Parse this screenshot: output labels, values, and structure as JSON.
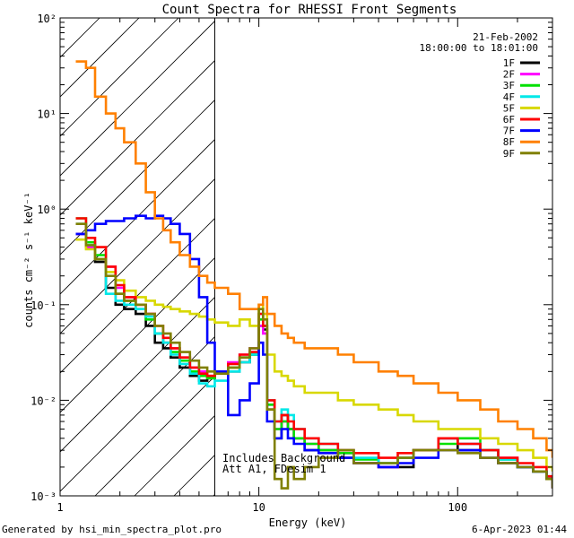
{
  "chart_data": {
    "type": "line",
    "title": "Count Spectra for RHESSI Front Segments",
    "xlabel": "Energy (keV)",
    "ylabel": "counts cm⁻² s⁻¹ keV⁻¹",
    "xscale": "log",
    "yscale": "log",
    "xlim": [
      1,
      300
    ],
    "ylim": [
      0.001,
      100
    ],
    "x_ticks": [
      {
        "value": 1,
        "label": "1"
      },
      {
        "value": 10,
        "label": "10"
      },
      {
        "value": 100,
        "label": "100"
      }
    ],
    "y_ticks": [
      {
        "value": 0.001,
        "label": "10⁻³"
      },
      {
        "value": 0.01,
        "label": "10⁻²"
      },
      {
        "value": 0.1,
        "label": "10⁻¹"
      },
      {
        "value": 1,
        "label": "10⁰"
      },
      {
        "value": 10,
        "label": "10¹"
      },
      {
        "value": 100,
        "label": "10²"
      }
    ],
    "date_label": "21-Feb-2002",
    "time_label": "18:00:00 to 18:01:00",
    "hatched_region_xmax": 6,
    "annotation_lines": [
      "Includes Background",
      "Att A1, FDesim 1"
    ],
    "legend_position": "top-right",
    "grid": false,
    "series": [
      {
        "name": "1F",
        "color": "#000000",
        "x": [
          1.2,
          1.35,
          1.5,
          1.7,
          1.9,
          2.1,
          2.4,
          2.7,
          3.0,
          3.3,
          3.6,
          4.0,
          4.5,
          5.0,
          5.5,
          6.0,
          7,
          8,
          9,
          10,
          10.5,
          11,
          12,
          13,
          14,
          15,
          17,
          20,
          25,
          30,
          40,
          50,
          60,
          80,
          100,
          130,
          160,
          200,
          240,
          280,
          300
        ],
        "y": [
          0.55,
          0.4,
          0.28,
          0.15,
          0.1,
          0.09,
          0.08,
          0.06,
          0.04,
          0.035,
          0.028,
          0.022,
          0.018,
          0.016,
          0.017,
          0.02,
          0.02,
          0.025,
          0.03,
          0.06,
          0.055,
          0.008,
          0.004,
          0.007,
          0.005,
          0.004,
          0.003,
          0.003,
          0.0025,
          0.0022,
          0.002,
          0.002,
          0.003,
          0.004,
          0.003,
          0.003,
          0.0022,
          0.002,
          0.0018,
          0.0015,
          0.0012
        ]
      },
      {
        "name": "2F",
        "color": "#ff00ff",
        "x": [
          1.2,
          1.35,
          1.5,
          1.7,
          1.9,
          2.1,
          2.4,
          2.7,
          3.0,
          3.3,
          3.6,
          4.0,
          4.5,
          5.0,
          5.5,
          6.0,
          7,
          8,
          9,
          10,
          10.5,
          11,
          12,
          13,
          14,
          15,
          17,
          20,
          25,
          30,
          40,
          50,
          60,
          80,
          100,
          130,
          160,
          200,
          240,
          280,
          300
        ],
        "y": [
          0.55,
          0.4,
          0.3,
          0.25,
          0.15,
          0.12,
          0.1,
          0.08,
          0.05,
          0.04,
          0.035,
          0.028,
          0.022,
          0.02,
          0.018,
          0.02,
          0.025,
          0.03,
          0.035,
          0.06,
          0.05,
          0.009,
          0.005,
          0.006,
          0.005,
          0.004,
          0.0035,
          0.003,
          0.0028,
          0.0022,
          0.002,
          0.0025,
          0.003,
          0.004,
          0.0035,
          0.003,
          0.0025,
          0.002,
          0.0018,
          0.0015,
          0.0012
        ]
      },
      {
        "name": "3F",
        "color": "#00e000",
        "x": [
          1.2,
          1.35,
          1.5,
          1.7,
          1.9,
          2.1,
          2.4,
          2.7,
          3.0,
          3.3,
          3.6,
          4.0,
          4.5,
          5.0,
          5.5,
          6.0,
          7,
          8,
          9,
          10,
          10.5,
          11,
          12,
          13,
          14,
          15,
          17,
          20,
          25,
          30,
          40,
          50,
          60,
          80,
          100,
          130,
          160,
          200,
          240,
          280,
          300
        ],
        "y": [
          0.8,
          0.45,
          0.33,
          0.22,
          0.13,
          0.11,
          0.09,
          0.07,
          0.05,
          0.04,
          0.032,
          0.026,
          0.02,
          0.018,
          0.017,
          0.019,
          0.022,
          0.028,
          0.03,
          0.07,
          0.06,
          0.009,
          0.005,
          0.006,
          0.005,
          0.004,
          0.0035,
          0.003,
          0.0028,
          0.0024,
          0.0022,
          0.0025,
          0.003,
          0.0035,
          0.004,
          0.003,
          0.0024,
          0.002,
          0.0018,
          0.0015,
          0.0013
        ]
      },
      {
        "name": "4F",
        "color": "#00e8e8",
        "x": [
          1.2,
          1.35,
          1.5,
          1.7,
          1.9,
          2.1,
          2.4,
          2.7,
          3.0,
          3.3,
          3.6,
          4.0,
          4.5,
          5.0,
          5.5,
          6.0,
          7,
          8,
          9,
          10,
          10.5,
          11,
          12,
          13,
          14,
          15,
          17,
          20,
          25,
          30,
          40,
          50,
          60,
          80,
          100,
          130,
          160,
          200,
          240,
          280,
          300
        ],
        "y": [
          0.7,
          0.42,
          0.3,
          0.13,
          0.11,
          0.1,
          0.09,
          0.075,
          0.05,
          0.04,
          0.03,
          0.024,
          0.019,
          0.015,
          0.014,
          0.016,
          0.02,
          0.025,
          0.03,
          0.08,
          0.06,
          0.01,
          0.006,
          0.008,
          0.007,
          0.005,
          0.004,
          0.0035,
          0.003,
          0.0025,
          0.0022,
          0.0025,
          0.003,
          0.004,
          0.0035,
          0.003,
          0.0024,
          0.002,
          0.0018,
          0.0016,
          0.0013
        ]
      },
      {
        "name": "5F",
        "color": "#d8d800",
        "x": [
          1.2,
          1.35,
          1.5,
          1.7,
          1.9,
          2.1,
          2.4,
          2.7,
          3.0,
          3.3,
          3.6,
          4.0,
          4.5,
          5.0,
          5.5,
          6.0,
          7,
          8,
          9,
          10,
          10.5,
          11,
          12,
          13,
          14,
          15,
          17,
          20,
          25,
          30,
          40,
          50,
          60,
          80,
          100,
          130,
          160,
          200,
          240,
          280,
          300
        ],
        "y": [
          0.48,
          0.38,
          0.3,
          0.22,
          0.18,
          0.14,
          0.12,
          0.11,
          0.1,
          0.095,
          0.09,
          0.085,
          0.08,
          0.075,
          0.07,
          0.065,
          0.06,
          0.07,
          0.06,
          0.1,
          0.08,
          0.03,
          0.02,
          0.018,
          0.016,
          0.014,
          0.012,
          0.012,
          0.01,
          0.009,
          0.008,
          0.007,
          0.006,
          0.005,
          0.005,
          0.004,
          0.0035,
          0.003,
          0.0025,
          0.002,
          0.0018
        ]
      },
      {
        "name": "6F",
        "color": "#ff0000",
        "x": [
          1.2,
          1.35,
          1.5,
          1.7,
          1.9,
          2.1,
          2.4,
          2.7,
          3.0,
          3.3,
          3.6,
          4.0,
          4.5,
          5.0,
          5.5,
          6.0,
          7,
          8,
          9,
          10,
          10.5,
          11,
          12,
          13,
          14,
          15,
          17,
          20,
          25,
          30,
          40,
          50,
          60,
          80,
          100,
          130,
          160,
          200,
          240,
          280,
          300
        ],
        "y": [
          0.8,
          0.5,
          0.4,
          0.25,
          0.16,
          0.12,
          0.1,
          0.08,
          0.06,
          0.045,
          0.035,
          0.028,
          0.022,
          0.019,
          0.018,
          0.02,
          0.024,
          0.03,
          0.032,
          0.08,
          0.06,
          0.01,
          0.006,
          0.007,
          0.006,
          0.005,
          0.004,
          0.0035,
          0.003,
          0.0028,
          0.0025,
          0.0028,
          0.003,
          0.004,
          0.0035,
          0.003,
          0.0025,
          0.0022,
          0.002,
          0.0016,
          0.0013
        ]
      },
      {
        "name": "7F",
        "color": "#0000ff",
        "x": [
          1.2,
          1.35,
          1.5,
          1.7,
          1.9,
          2.1,
          2.4,
          2.7,
          3.0,
          3.3,
          3.6,
          4.0,
          4.5,
          5.0,
          5.5,
          6.0,
          7,
          8,
          9,
          10,
          10.5,
          11,
          12,
          13,
          14,
          15,
          17,
          20,
          25,
          30,
          40,
          50,
          60,
          80,
          100,
          130,
          160,
          200,
          240,
          280,
          300
        ],
        "y": [
          0.55,
          0.6,
          0.7,
          0.75,
          0.75,
          0.8,
          0.85,
          0.8,
          0.85,
          0.8,
          0.7,
          0.55,
          0.3,
          0.12,
          0.04,
          0.02,
          0.007,
          0.01,
          0.015,
          0.04,
          0.03,
          0.006,
          0.004,
          0.005,
          0.004,
          0.0035,
          0.003,
          0.0028,
          0.0025,
          0.0022,
          0.002,
          0.0022,
          0.0025,
          0.003,
          0.003,
          0.0025,
          0.0022,
          0.002,
          0.0018,
          0.0015,
          0.0012
        ]
      },
      {
        "name": "8F",
        "color": "#ff8000",
        "x": [
          1.2,
          1.35,
          1.5,
          1.7,
          1.9,
          2.1,
          2.4,
          2.7,
          3.0,
          3.3,
          3.6,
          4.0,
          4.5,
          5.0,
          5.5,
          6.0,
          7,
          8,
          9,
          10,
          10.5,
          11,
          12,
          13,
          14,
          15,
          17,
          20,
          25,
          30,
          40,
          50,
          60,
          80,
          100,
          130,
          160,
          200,
          240,
          280,
          300
        ],
        "y": [
          35,
          30,
          15,
          10,
          7,
          5,
          3,
          1.5,
          0.8,
          0.6,
          0.45,
          0.33,
          0.25,
          0.2,
          0.17,
          0.15,
          0.13,
          0.09,
          0.09,
          0.1,
          0.12,
          0.08,
          0.06,
          0.05,
          0.045,
          0.04,
          0.035,
          0.035,
          0.03,
          0.025,
          0.02,
          0.018,
          0.015,
          0.012,
          0.01,
          0.008,
          0.006,
          0.005,
          0.004,
          0.003,
          0.0025
        ]
      },
      {
        "name": "9F",
        "color": "#808000",
        "x": [
          1.2,
          1.35,
          1.5,
          1.7,
          1.9,
          2.1,
          2.4,
          2.7,
          3.0,
          3.3,
          3.6,
          4.0,
          4.5,
          5.0,
          5.5,
          6.0,
          7,
          8,
          9,
          10,
          10.5,
          11,
          12,
          13,
          14,
          15,
          17,
          20,
          25,
          30,
          40,
          50,
          60,
          80,
          100,
          130,
          160,
          200,
          240,
          280,
          300
        ],
        "y": [
          0.7,
          0.42,
          0.3,
          0.2,
          0.13,
          0.11,
          0.1,
          0.08,
          0.06,
          0.05,
          0.04,
          0.032,
          0.026,
          0.022,
          0.02,
          0.019,
          0.022,
          0.028,
          0.035,
          0.09,
          0.07,
          0.008,
          0.0015,
          0.0012,
          0.002,
          0.0015,
          0.002,
          0.0025,
          0.003,
          0.0022,
          0.0022,
          0.0025,
          0.003,
          0.003,
          0.0028,
          0.0025,
          0.0022,
          0.002,
          0.0018,
          0.0015,
          0.0012
        ]
      }
    ]
  },
  "footer": {
    "generated_by": "Generated by hsi_min_spectra_plot.pro",
    "timestamp": "6-Apr-2023 01:44"
  }
}
